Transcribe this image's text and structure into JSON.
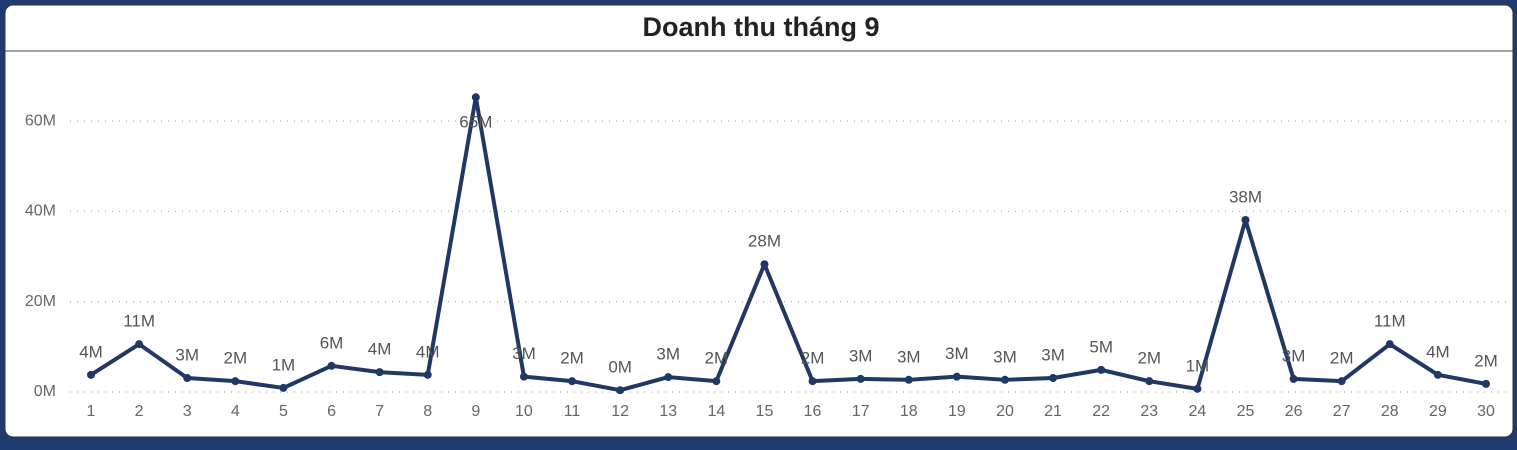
{
  "chart_data": {
    "type": "line",
    "title": "Doanh thu tháng 9",
    "categories": [
      "1",
      "2",
      "3",
      "4",
      "5",
      "6",
      "7",
      "8",
      "9",
      "10",
      "11",
      "12",
      "13",
      "14",
      "15",
      "16",
      "17",
      "18",
      "19",
      "20",
      "21",
      "22",
      "23",
      "24",
      "25",
      "26",
      "27",
      "28",
      "29",
      "30"
    ],
    "series": [
      {
        "color": "#1f3864",
        "values": [
          3.8,
          10.6,
          3.1,
          2.4,
          0.9,
          5.8,
          4.4,
          3.8,
          65.3,
          3.4,
          2.4,
          0.4,
          3.3,
          2.4,
          28.3,
          2.4,
          2.9,
          2.7,
          3.4,
          2.7,
          3.1,
          4.9,
          2.4,
          0.7,
          38.1,
          2.9,
          2.4,
          10.6,
          3.8,
          1.8
        ],
        "value_labels": [
          "4M",
          "11M",
          "3M",
          "2M",
          "1M",
          "6M",
          "4M",
          "4M",
          "65M",
          "3M",
          "2M",
          "0M",
          "3M",
          "2M",
          "28M",
          "2M",
          "3M",
          "3M",
          "3M",
          "3M",
          "3M",
          "5M",
          "2M",
          "1M",
          "38M",
          "3M",
          "2M",
          "11M",
          "4M",
          "2M"
        ]
      }
    ],
    "ylim": [
      0,
      70
    ],
    "yticks": [
      {
        "value": 0,
        "label": "0M"
      },
      {
        "value": 20,
        "label": "20M"
      },
      {
        "value": 40,
        "label": "40M"
      },
      {
        "value": 60,
        "label": "60M"
      }
    ],
    "grid": true
  }
}
